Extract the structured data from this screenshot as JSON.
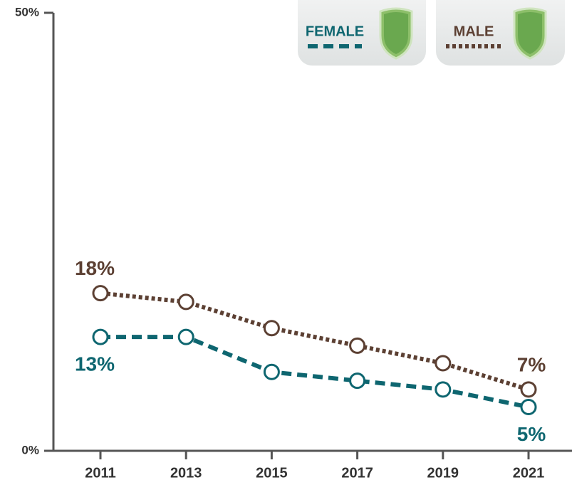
{
  "chart_data": {
    "type": "line",
    "categories": [
      "2011",
      "2013",
      "2015",
      "2017",
      "2019",
      "2021"
    ],
    "series": [
      {
        "name": "FEMALE",
        "color": "#0e6670",
        "line_style": "dashed",
        "values": [
          13,
          13,
          9,
          8,
          7,
          5
        ],
        "value_labels": [
          "13%",
          null,
          null,
          null,
          null,
          "5%"
        ]
      },
      {
        "name": "MALE",
        "color": "#5c4033",
        "line_style": "dotted",
        "values": [
          18,
          17,
          14,
          12,
          10,
          7
        ],
        "value_labels": [
          "18%",
          null,
          null,
          null,
          null,
          "7%"
        ]
      }
    ],
    "ylim": [
      0,
      50
    ],
    "yticks": [
      {
        "value": 0,
        "label": "0%"
      },
      {
        "value": 50,
        "label": "50%"
      }
    ],
    "grid": false
  }
}
